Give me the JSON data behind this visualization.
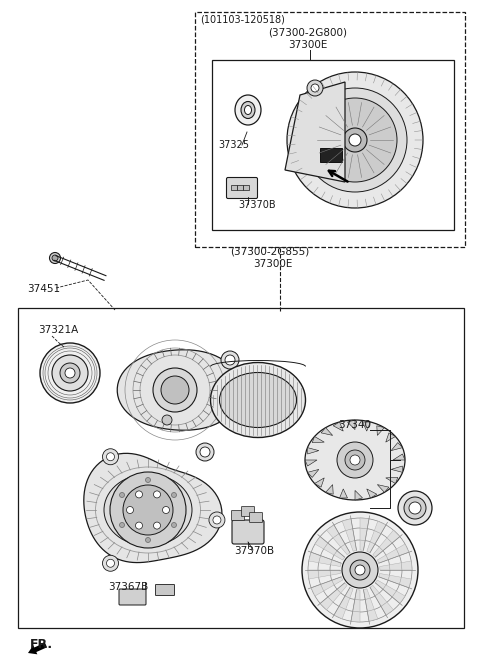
{
  "bg_color": "#ffffff",
  "border_color": "#1a1a1a",
  "line_color": "#1a1a1a",
  "text_color": "#1a1a1a",
  "labels": {
    "top_date": "(101103-120518)",
    "top_part1": "(37300-2G800)",
    "top_part2": "37300E",
    "mid_part1": "(37300-2G855)",
    "mid_part2": "37300E",
    "l37451": "37451",
    "l37321A": "37321A",
    "l37325": "37325",
    "l37370B_top": "37370B",
    "l37370B_bot": "37370B",
    "l37340": "37340",
    "l37367B": "37367B",
    "fr": "FR."
  },
  "fig_width": 4.8,
  "fig_height": 6.62,
  "dpi": 100
}
